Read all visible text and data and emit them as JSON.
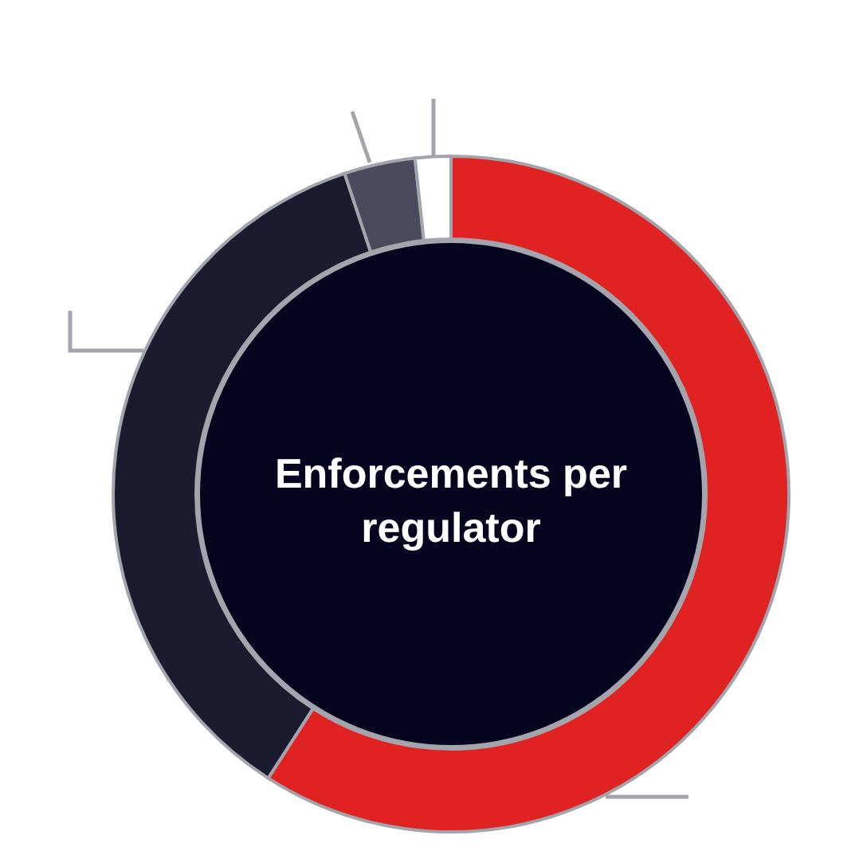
{
  "chart_data": {
    "type": "donut",
    "title": "Enforcements per regulator",
    "categories": [
      null,
      null,
      null,
      null
    ],
    "values": [
      59.1,
      35.8,
      3.4,
      1.7
    ],
    "colors": [
      "#e02222",
      "#1b1b30",
      "#4a4a5c",
      "#ffffff"
    ]
  }
}
